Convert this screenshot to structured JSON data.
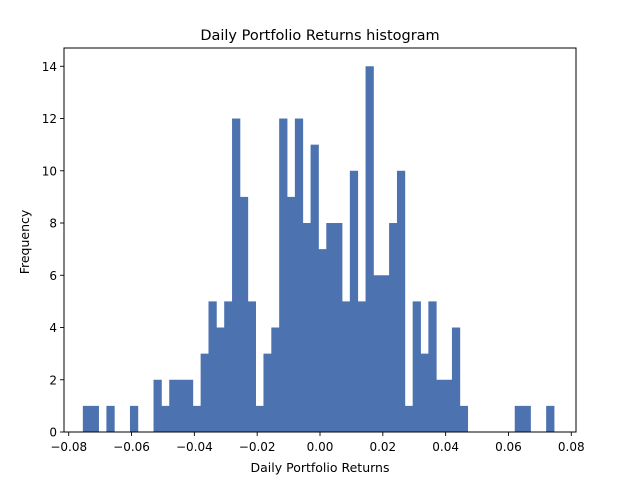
{
  "chart_data": {
    "type": "bar",
    "title": "Daily Portfolio Returns histogram",
    "xlabel": "Daily Portfolio Returns",
    "ylabel": "Frequency",
    "xlim": [
      -0.0815,
      0.0815
    ],
    "ylim": [
      0,
      14.7
    ],
    "xticks": [
      -0.08,
      -0.06,
      -0.04,
      -0.02,
      0.0,
      0.02,
      0.04,
      0.06,
      0.08
    ],
    "xtick_labels": [
      "−0.08",
      "−0.06",
      "−0.04",
      "−0.02",
      "0.00",
      "0.02",
      "0.04",
      "0.06",
      "0.08"
    ],
    "yticks": [
      0,
      2,
      4,
      6,
      8,
      10,
      12,
      14
    ],
    "ytick_labels": [
      "0",
      "2",
      "4",
      "6",
      "8",
      "10",
      "12",
      "14"
    ],
    "bar_color": "#4c72b0",
    "grid": false,
    "bin_start": -0.0755,
    "bin_width": 0.0025,
    "counts": [
      1,
      1,
      0,
      1,
      0,
      0,
      1,
      0,
      0,
      2,
      1,
      2,
      2,
      2,
      1,
      3,
      5,
      4,
      5,
      12,
      9,
      5,
      1,
      3,
      4,
      12,
      9,
      12,
      8,
      11,
      7,
      8,
      8,
      5,
      10,
      5,
      14,
      6,
      6,
      8,
      10,
      1,
      5,
      3,
      5,
      2,
      2,
      4,
      1,
      0,
      0,
      0,
      0,
      0,
      0,
      1,
      1,
      0,
      0,
      1
    ]
  }
}
